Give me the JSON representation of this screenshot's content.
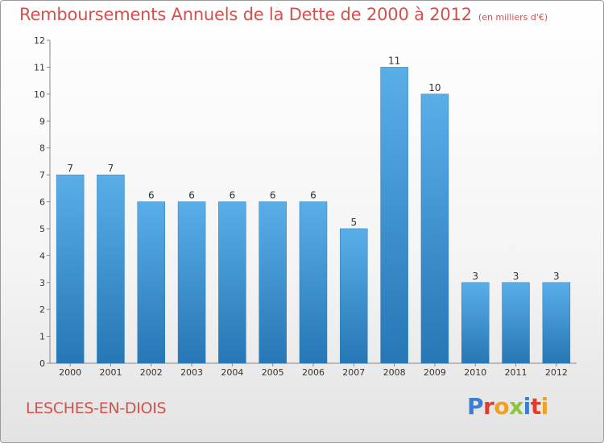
{
  "header": {
    "title": "Remboursements Annuels de la Dette de 2000 à 2012",
    "unit": "(en milliers d'€)"
  },
  "footer": {
    "place": "LESCHES-EN-DIOIS",
    "logo_letters": [
      "P",
      "r",
      "o",
      "x",
      "i",
      "t",
      "i"
    ]
  },
  "colors": {
    "title": "#d0524e",
    "bar_light": "#5aaee8",
    "bar_dark": "#2577b5",
    "logo": [
      "#3a7fd4",
      "#e53b2c",
      "#f2a11f",
      "#8cc63e",
      "#3a7fd4",
      "#e53b2c",
      "#f2a11f"
    ]
  },
  "chart_data": {
    "type": "bar",
    "title": "Remboursements Annuels de la Dette de 2000 à 2012",
    "categories": [
      "2000",
      "2001",
      "2002",
      "2003",
      "2004",
      "2005",
      "2006",
      "2007",
      "2008",
      "2009",
      "2010",
      "2011",
      "2012"
    ],
    "values": [
      7,
      7,
      6,
      6,
      6,
      6,
      6,
      5,
      11,
      10,
      3,
      3,
      3
    ],
    "yticks": [
      0,
      1,
      2,
      3,
      4,
      5,
      6,
      7,
      8,
      9,
      10,
      11,
      12
    ],
    "ylim": [
      0,
      12
    ],
    "xlabel": "",
    "ylabel": "",
    "grid": false,
    "legend": "none"
  }
}
